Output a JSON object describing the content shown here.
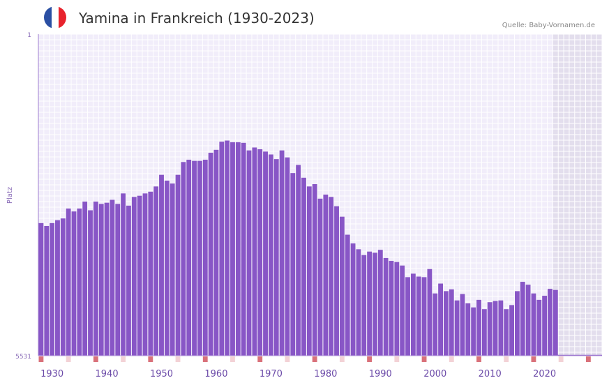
{
  "header": {
    "title": "Yamina in Frankreich (1930-2023)",
    "source": "Quelle: Baby-Vornamen.de",
    "flag_colors": [
      "#2a4fa3",
      "#ffffff",
      "#e8232d"
    ]
  },
  "chart_data": {
    "type": "bar",
    "title": "Yamina in Frankreich (1930-2023)",
    "ylabel": "Platz",
    "xlabel": "",
    "y_axis": "rank (inverted, 1 at top)",
    "ylim": [
      1,
      5531
    ],
    "xlim": [
      1928,
      2031
    ],
    "x_ticks": [
      1930,
      1940,
      1950,
      1960,
      1970,
      1980,
      1990,
      2000,
      2010,
      2020
    ],
    "y_ticks": [
      "1",
      "5531"
    ],
    "years": [
      1928,
      1929,
      1930,
      1931,
      1932,
      1933,
      1934,
      1935,
      1936,
      1937,
      1938,
      1939,
      1940,
      1941,
      1942,
      1943,
      1944,
      1945,
      1946,
      1947,
      1948,
      1949,
      1950,
      1951,
      1952,
      1953,
      1954,
      1955,
      1956,
      1957,
      1958,
      1959,
      1960,
      1961,
      1962,
      1963,
      1964,
      1965,
      1966,
      1967,
      1968,
      1969,
      1970,
      1971,
      1972,
      1973,
      1974,
      1975,
      1976,
      1977,
      1978,
      1979,
      1980,
      1981,
      1982,
      1983,
      1984,
      1985,
      1986,
      1987,
      1988,
      1989,
      1990,
      1991,
      1992,
      1993,
      1994,
      1995,
      1996,
      1997,
      1998,
      1999,
      2000,
      2001,
      2002,
      2003,
      2004,
      2005,
      2006,
      2007,
      2008,
      2009,
      2010,
      2011,
      2012,
      2013,
      2014,
      2015,
      2016,
      2017,
      2018,
      2019,
      2020,
      2021,
      2022
    ],
    "values": [
      3250,
      3300,
      3250,
      3200,
      3170,
      3000,
      3050,
      3000,
      2880,
      3030,
      2880,
      2920,
      2900,
      2850,
      2920,
      2740,
      2950,
      2800,
      2780,
      2740,
      2710,
      2620,
      2420,
      2520,
      2570,
      2420,
      2200,
      2160,
      2180,
      2180,
      2160,
      2040,
      1990,
      1850,
      1830,
      1860,
      1860,
      1870,
      2000,
      1950,
      1980,
      2020,
      2070,
      2150,
      2000,
      2120,
      2390,
      2250,
      2470,
      2620,
      2580,
      2830,
      2760,
      2800,
      2960,
      3140,
      3450,
      3600,
      3700,
      3800,
      3740,
      3760,
      3710,
      3850,
      3900,
      3920,
      3980,
      4180,
      4120,
      4170,
      4180,
      4040,
      4460,
      4290,
      4420,
      4390,
      4580,
      4470,
      4630,
      4700,
      4570,
      4730,
      4610,
      4590,
      4580,
      4730,
      4660,
      4420,
      4260,
      4310,
      4460,
      4570,
      4500,
      4380,
      4400
    ],
    "series_color": "#8856c6",
    "grid": true,
    "shaded_region": {
      "from_year": 2022,
      "to_year": 2031
    },
    "bottom_marker_colors": {
      "strong": "#d9717a",
      "light": "#f3d2d6"
    }
  }
}
